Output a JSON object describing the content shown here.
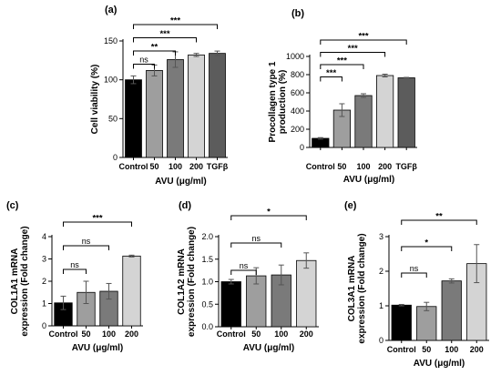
{
  "colors": {
    "control": "#000000",
    "d50": "#9e9e9e",
    "d100": "#7a7a7a",
    "d200": "#d4d4d4",
    "tgfb": "#5c5c5c"
  },
  "chart_data": [
    {
      "id": "a",
      "type": "bar",
      "panel_label": "(a)",
      "ylabel": "Cell viability (%)",
      "xlabel": "AVU (μg/ml)",
      "categories": [
        "Control",
        "50",
        "100",
        "200",
        "TGFβ"
      ],
      "values": [
        100,
        112,
        126,
        132,
        134
      ],
      "errors": [
        5,
        7,
        10,
        2,
        3
      ],
      "color_keys": [
        "control",
        "d50",
        "d100",
        "d200",
        "tgfb"
      ],
      "ylim": [
        0,
        150
      ],
      "yticks": [
        0,
        50,
        100,
        150
      ],
      "significance": [
        {
          "from": 0,
          "to": 1,
          "label": "ns"
        },
        {
          "from": 0,
          "to": 2,
          "label": "**"
        },
        {
          "from": 0,
          "to": 3,
          "label": "***"
        },
        {
          "from": 0,
          "to": 4,
          "label": "***"
        }
      ]
    },
    {
      "id": "b",
      "type": "bar",
      "panel_label": "(b)",
      "ylabel": "Procollagen type 1 production (%)",
      "xlabel": "AVU (μg/ml)",
      "categories": [
        "Control",
        "50",
        "100",
        "200",
        "TGFβ"
      ],
      "values": [
        100,
        410,
        570,
        790,
        765
      ],
      "errors": [
        8,
        70,
        20,
        15,
        5
      ],
      "color_keys": [
        "control",
        "d50",
        "d100",
        "d200",
        "tgfb"
      ],
      "ylim": [
        0,
        1000
      ],
      "yticks": [
        0,
        200,
        400,
        600,
        800,
        1000
      ],
      "significance": [
        {
          "from": 0,
          "to": 1,
          "label": "***"
        },
        {
          "from": 0,
          "to": 2,
          "label": "***"
        },
        {
          "from": 0,
          "to": 3,
          "label": "***"
        },
        {
          "from": 0,
          "to": 4,
          "label": "***"
        }
      ]
    },
    {
      "id": "c",
      "type": "bar",
      "panel_label": "(c)",
      "ylabel": "COL1A1 mRNA expression (Fold change)",
      "xlabel": "AVU (μg/ml)",
      "categories": [
        "Control",
        "50",
        "100",
        "200"
      ],
      "values": [
        1.03,
        1.5,
        1.55,
        3.13
      ],
      "errors": [
        0.3,
        0.5,
        0.35,
        0.04
      ],
      "color_keys": [
        "control",
        "d50",
        "d100",
        "d200"
      ],
      "ylim": [
        0,
        4
      ],
      "yticks": [
        0,
        1,
        2,
        3,
        4
      ],
      "significance": [
        {
          "from": 0,
          "to": 1,
          "label": "ns"
        },
        {
          "from": 0,
          "to": 2,
          "label": "ns"
        },
        {
          "from": 0,
          "to": 3,
          "label": "***"
        }
      ]
    },
    {
      "id": "d",
      "type": "bar",
      "panel_label": "(d)",
      "ylabel": "COL1A2 mRNA expression (Fold change)",
      "xlabel": "AVU (μg/ml)",
      "categories": [
        "Control",
        "50",
        "100",
        "200"
      ],
      "values": [
        1.0,
        1.13,
        1.15,
        1.47
      ],
      "errors": [
        0.05,
        0.18,
        0.22,
        0.17
      ],
      "color_keys": [
        "control",
        "d50",
        "d100",
        "d200"
      ],
      "ylim": [
        0,
        2.0
      ],
      "yticks": [
        0.0,
        0.5,
        1.0,
        1.5,
        2.0
      ],
      "significance": [
        {
          "from": 0,
          "to": 1,
          "label": "ns"
        },
        {
          "from": 0,
          "to": 2,
          "label": "ns"
        },
        {
          "from": 0,
          "to": 3,
          "label": "*"
        }
      ]
    },
    {
      "id": "e",
      "type": "bar",
      "panel_label": "(e)",
      "ylabel": "COL3A1 mRNA expression (Fold change)",
      "xlabel": "AVU (μg/ml)",
      "categories": [
        "Control",
        "50",
        "100",
        "200"
      ],
      "values": [
        1.02,
        0.98,
        1.72,
        2.22
      ],
      "errors": [
        0.02,
        0.12,
        0.06,
        0.55
      ],
      "color_keys": [
        "control",
        "d50",
        "d100",
        "d200"
      ],
      "ylim": [
        0,
        3
      ],
      "yticks": [
        0,
        1,
        2,
        3
      ],
      "significance": [
        {
          "from": 0,
          "to": 1,
          "label": "ns"
        },
        {
          "from": 0,
          "to": 2,
          "label": "*"
        },
        {
          "from": 0,
          "to": 3,
          "label": "**"
        }
      ]
    }
  ]
}
